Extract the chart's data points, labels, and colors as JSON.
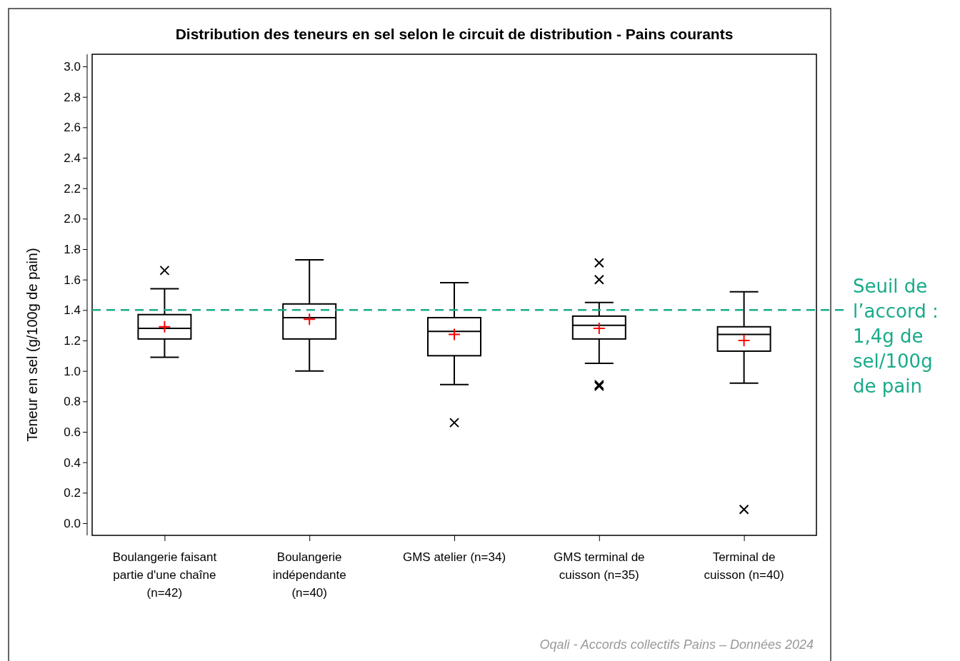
{
  "chart_data": {
    "type": "box",
    "title": "Distribution des teneurs en sel selon le circuit de distribution - Pains courants",
    "ylabel": "Teneur en sel (g/100g de pain)",
    "categories": [
      "Boulangerie faisant partie d'une chaîne (n=42)",
      "Boulangerie indépendante (n=40)",
      "GMS atelier (n=34)",
      "GMS terminal de cuisson (n=35)",
      "Terminal de cuisson (n=40)"
    ],
    "boxes": [
      {
        "low": 1.09,
        "q1": 1.21,
        "median": 1.28,
        "q3": 1.37,
        "high": 1.54,
        "mean": 1.29,
        "outliers": [
          1.66
        ]
      },
      {
        "low": 1.0,
        "q1": 1.21,
        "median": 1.35,
        "q3": 1.44,
        "high": 1.73,
        "mean": 1.34
      },
      {
        "low": 0.91,
        "q1": 1.1,
        "median": 1.26,
        "q3": 1.35,
        "high": 1.58,
        "mean": 1.24,
        "outliers": [
          0.66
        ]
      },
      {
        "low": 1.05,
        "q1": 1.21,
        "median": 1.3,
        "q3": 1.36,
        "high": 1.45,
        "mean": 1.28,
        "outliers": [
          1.71,
          1.6,
          0.9,
          0.91
        ]
      },
      {
        "low": 0.92,
        "q1": 1.13,
        "median": 1.24,
        "q3": 1.29,
        "high": 1.52,
        "mean": 1.2,
        "outliers": [
          0.09
        ]
      }
    ],
    "color": "#000000",
    "ylim": [
      -0.08,
      3.08
    ],
    "yticks": [
      {
        "value": 0,
        "label": "0.0"
      },
      {
        "value": 0.2,
        "label": "0.2"
      },
      {
        "value": 0.4,
        "label": "0.4"
      },
      {
        "value": 0.6,
        "label": "0.6"
      },
      {
        "value": 0.8,
        "label": "0.8"
      },
      {
        "value": 1,
        "label": "1.0"
      },
      {
        "value": 1.2,
        "label": "1.2"
      },
      {
        "value": 1.4,
        "label": "1.4"
      },
      {
        "value": 1.6,
        "label": "1.6"
      },
      {
        "value": 1.8,
        "label": "1.8"
      },
      {
        "value": 2,
        "label": "2.0"
      },
      {
        "value": 2.2,
        "label": "2.2"
      },
      {
        "value": 2.4,
        "label": "2.4"
      },
      {
        "value": 2.6,
        "label": "2.6"
      },
      {
        "value": 2.8,
        "label": "2.8"
      },
      {
        "value": 3,
        "label": "3.0"
      }
    ],
    "ref_lines": [
      {
        "axis": "y",
        "value": 1.4,
        "label": "Seuil de l’accord : 1,4g de sel/100g de pain",
        "color": "#1aab8a",
        "line_style": "dashed"
      }
    ],
    "annotations": [
      "Oqali - Accords collectifs Pains – Données 2024"
    ],
    "grid": false
  }
}
